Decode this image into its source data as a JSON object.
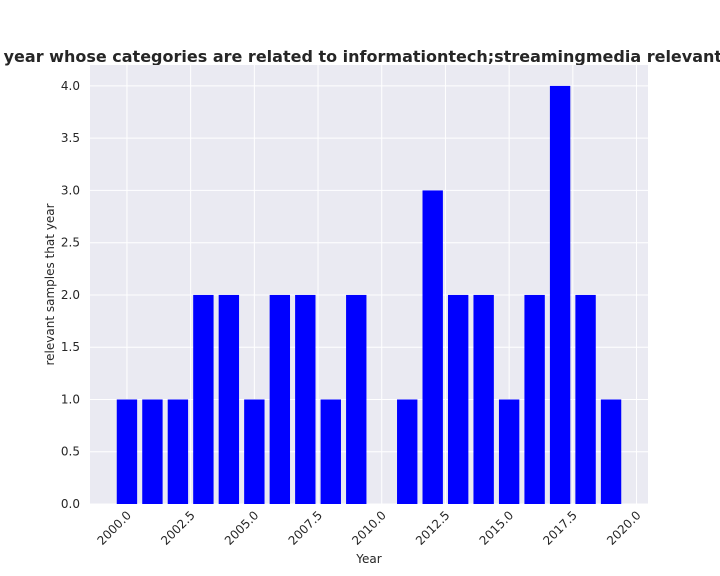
{
  "chart_data": {
    "type": "bar",
    "title": "Number of relevant samples by the year whose categories are related to informationtech;streamingmedia relevant samples that year in privacy policies",
    "xlabel": "Year",
    "ylabel": "relevant samples that year",
    "x": [
      2000,
      2001,
      2002,
      2003,
      2004,
      2005,
      2006,
      2007,
      2008,
      2009,
      2010,
      2011,
      2012,
      2013,
      2014,
      2015,
      2016,
      2017,
      2018,
      2019
    ],
    "values": [
      1,
      1,
      1,
      2,
      2,
      1,
      2,
      2,
      1,
      2,
      0,
      1,
      3,
      2,
      2,
      1,
      2,
      4,
      2,
      1
    ],
    "xlim": [
      1998.55,
      2020.45
    ],
    "ylim": [
      0,
      4.2
    ],
    "xticks": [
      "2000.0",
      "2002.5",
      "2005.0",
      "2007.5",
      "2010.0",
      "2012.5",
      "2015.0",
      "2017.5",
      "2020.0"
    ],
    "yticks": [
      "0.0",
      "0.5",
      "1.0",
      "1.5",
      "2.0",
      "2.5",
      "3.0",
      "3.5",
      "4.0"
    ],
    "bar_color": "#0000ff",
    "grid": true,
    "legend": false,
    "colors": {
      "plot_background": "#eaeaf2",
      "grid": "#ffffff",
      "text": "#262626"
    }
  }
}
